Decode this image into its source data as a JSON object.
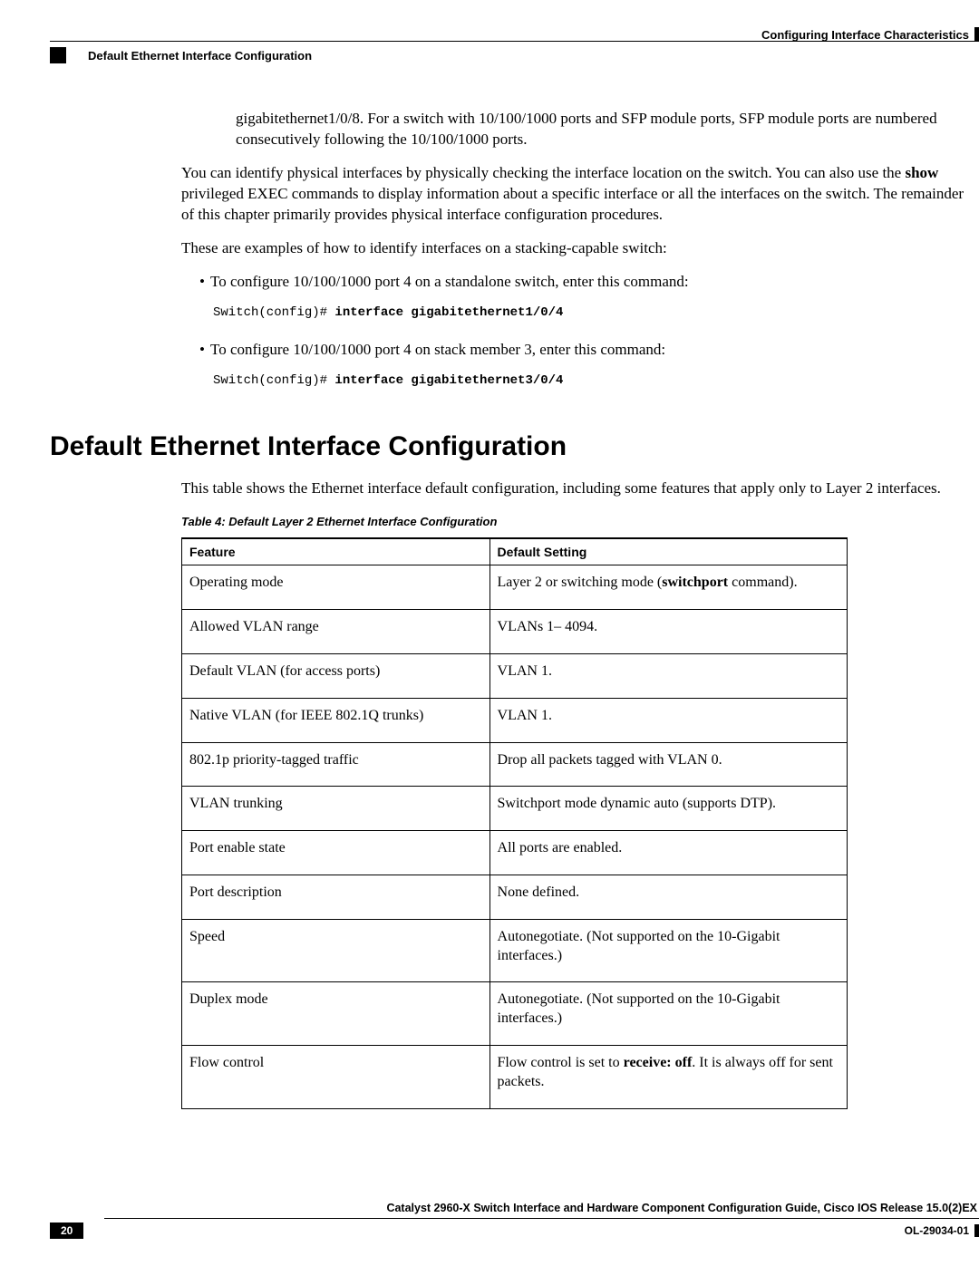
{
  "header": {
    "right_text": "Configuring Interface Characteristics",
    "left_text": "Default Ethernet Interface Configuration"
  },
  "intro": {
    "p1": "gigabitethernet1/0/8. For a switch with 10/100/1000 ports and SFP module ports, SFP module ports are numbered consecutively following the 10/100/1000 ports.",
    "p2a": "You can identify physical interfaces by physically checking the interface location on the switch. You can also use the ",
    "p2_cmd": "show",
    "p2b": " privileged EXEC commands to display information about a specific interface or all the interfaces on the switch. The remainder of this chapter primarily provides physical interface configuration procedures.",
    "p3": "These are examples of how to identify interfaces on a stacking-capable switch:",
    "bullet1": "To configure 10/100/1000 port 4 on a standalone switch, enter this command:",
    "code1_pre": "Switch(config)# ",
    "code1_bold": "interface gigabitethernet1/0/4",
    "bullet2": "To configure 10/100/1000 port 4 on stack member 3, enter this command:",
    "code2_pre": "Switch(config)# ",
    "code2_bold": "interface gigabitethernet3/0/4"
  },
  "section": {
    "title": "Default Ethernet Interface Configuration",
    "desc": "This table shows the Ethernet interface default configuration, including some features that apply only to Layer 2 interfaces.",
    "table_caption": "Table 4: Default Layer 2 Ethernet Interface Configuration",
    "headers": {
      "c1": "Feature",
      "c2": "Default Setting"
    },
    "rows": [
      {
        "feature": "Operating mode",
        "setting_pre": "Layer 2 or switching mode (",
        "setting_bold": "switchport",
        "setting_post": " command)."
      },
      {
        "feature": "Allowed VLAN range",
        "setting_pre": "VLANs 1– 4094.",
        "setting_bold": "",
        "setting_post": ""
      },
      {
        "feature": "Default VLAN (for access ports)",
        "setting_pre": "VLAN 1.",
        "setting_bold": "",
        "setting_post": ""
      },
      {
        "feature": "Native VLAN (for IEEE 802.1Q trunks)",
        "setting_pre": "VLAN 1.",
        "setting_bold": "",
        "setting_post": ""
      },
      {
        "feature": "802.1p priority-tagged traffic",
        "setting_pre": "Drop all packets tagged with VLAN 0.",
        "setting_bold": "",
        "setting_post": ""
      },
      {
        "feature": "VLAN trunking",
        "setting_pre": "Switchport mode dynamic auto (supports DTP).",
        "setting_bold": "",
        "setting_post": ""
      },
      {
        "feature": "Port enable state",
        "setting_pre": "All ports are enabled.",
        "setting_bold": "",
        "setting_post": ""
      },
      {
        "feature": "Port description",
        "setting_pre": "None defined.",
        "setting_bold": "",
        "setting_post": ""
      },
      {
        "feature": "Speed",
        "setting_pre": "Autonegotiate. (Not supported on the 10-Gigabit interfaces.)",
        "setting_bold": "",
        "setting_post": ""
      },
      {
        "feature": "Duplex mode",
        "setting_pre": "Autonegotiate. (Not supported on the 10-Gigabit interfaces.)",
        "setting_bold": "",
        "setting_post": ""
      },
      {
        "feature": "Flow control",
        "setting_pre": "Flow control is set to ",
        "setting_bold": "receive: off",
        "setting_post": ". It is always off for sent packets."
      }
    ]
  },
  "footer": {
    "title": "Catalyst 2960-X Switch Interface and Hardware Component Configuration Guide, Cisco IOS Release 15.0(2)EX",
    "page": "20",
    "code": "OL-29034-01"
  }
}
